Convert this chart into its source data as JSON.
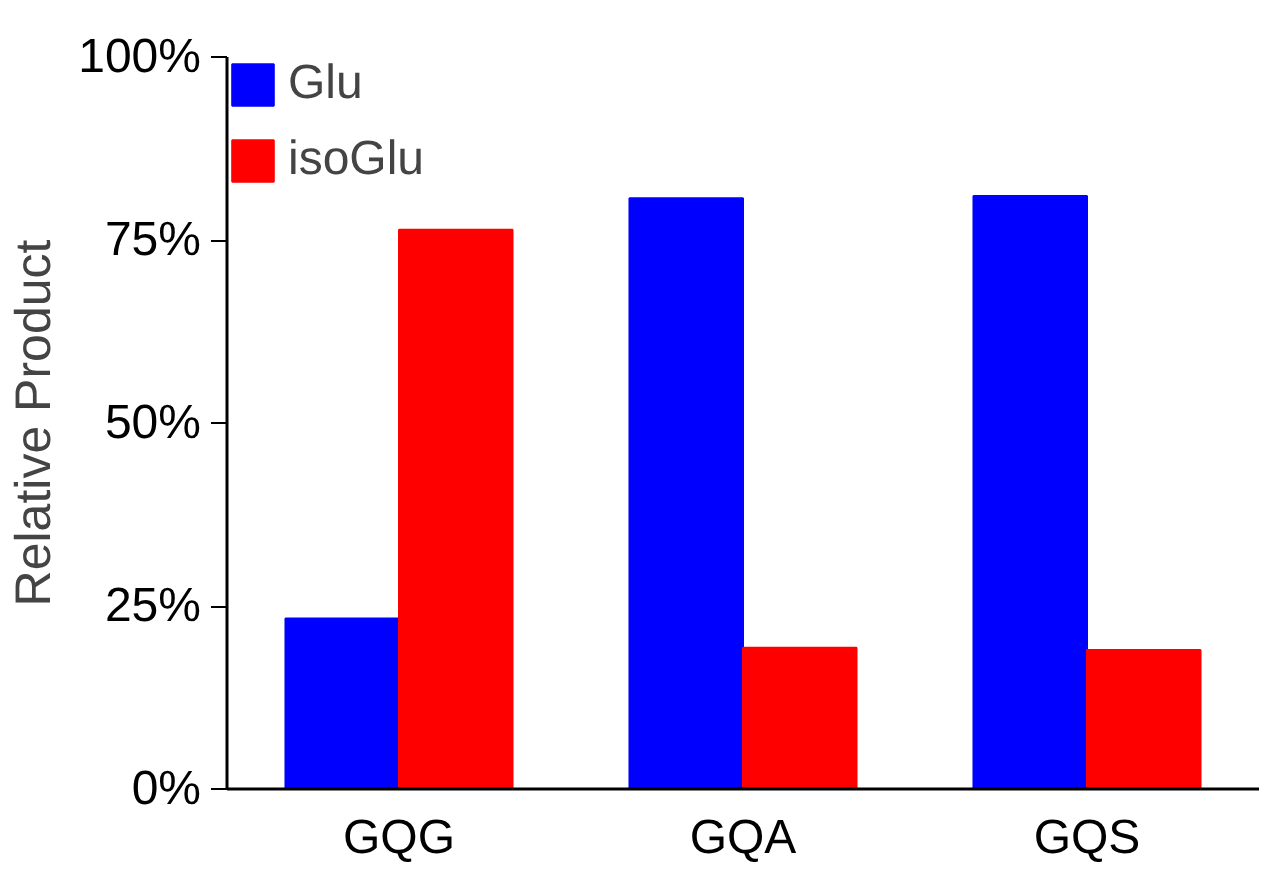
{
  "chart_data": {
    "type": "bar",
    "ylabel": "Relative Product",
    "categories": [
      "GQG",
      "GQA",
      "GQS"
    ],
    "series": [
      {
        "name": "Glu",
        "color": "#0000ff",
        "values": [
          23.3,
          80.7,
          81.0
        ]
      },
      {
        "name": "isoGlu",
        "color": "#ff0000",
        "values": [
          76.4,
          19.3,
          19.0
        ]
      }
    ],
    "ylim": [
      0,
      100
    ],
    "yticks": [
      {
        "value": 0,
        "label": "0%"
      },
      {
        "value": 25,
        "label": "25%"
      },
      {
        "value": 50,
        "label": "50%"
      },
      {
        "value": 75,
        "label": "75%"
      },
      {
        "value": 100,
        "label": "100%"
      }
    ],
    "grid": false,
    "legend": "top left"
  }
}
